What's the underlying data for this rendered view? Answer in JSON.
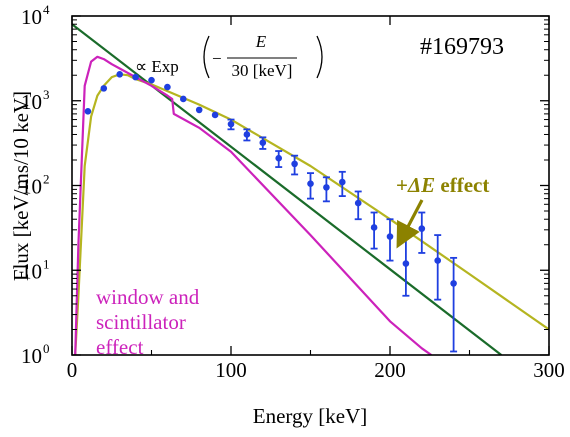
{
  "chart_data": {
    "type": "scatter",
    "xlabel": "Energy [keV]",
    "ylabel": "Flux [keV/ms/10 keV]",
    "xlim": [
      0,
      300
    ],
    "ylim": [
      1,
      10000
    ],
    "yscale": "log",
    "xticks": [
      0,
      100,
      200,
      300
    ],
    "yticks": [
      {
        "base": "10",
        "exp": "0",
        "value": 1
      },
      {
        "base": "10",
        "exp": "1",
        "value": 10
      },
      {
        "base": "10",
        "exp": "2",
        "value": 100
      },
      {
        "base": "10",
        "exp": "3",
        "value": 1000
      },
      {
        "base": "10",
        "exp": "4",
        "value": 10000
      }
    ],
    "shot_label": "#169793",
    "formula": {
      "prefix": "∝ Exp",
      "sign": "−",
      "numerator": "E",
      "denominator": "30 [keV]"
    },
    "series": [
      {
        "color": "#1f3fe0",
        "style": "points-errorbars",
        "x": [
          10,
          20,
          30,
          40,
          50,
          60,
          70,
          80,
          90,
          100,
          110,
          120,
          130,
          140,
          150,
          160,
          170,
          180,
          190,
          200,
          210,
          220,
          230,
          240
        ],
        "y": [
          750,
          1400,
          2050,
          1900,
          1750,
          1450,
          1050,
          780,
          680,
          530,
          400,
          320,
          210,
          180,
          105,
          95,
          110,
          62,
          32,
          25,
          12,
          31,
          13,
          7
        ],
        "y_low": [
          null,
          null,
          null,
          null,
          null,
          null,
          null,
          null,
          null,
          460,
          340,
          270,
          165,
          135,
          70,
          65,
          75,
          40,
          18,
          13,
          5,
          16,
          4.5,
          1.1
        ],
        "y_high": [
          null,
          null,
          null,
          null,
          null,
          null,
          null,
          null,
          null,
          600,
          460,
          370,
          255,
          225,
          140,
          125,
          145,
          85,
          48,
          40,
          24,
          48,
          26,
          14
        ]
      },
      {
        "color": "#1a6b2a",
        "style": "line",
        "x": [
          0,
          270
        ],
        "y": [
          8000,
          1.0
        ]
      },
      {
        "color": "#b5b520",
        "style": "line",
        "x": [
          2,
          4,
          8,
          12,
          16,
          20,
          25,
          30,
          35,
          40,
          50,
          60,
          80,
          100,
          150,
          200,
          250,
          300
        ],
        "y": [
          1.0,
          5,
          170,
          650,
          1150,
          1500,
          1900,
          2050,
          2000,
          1800,
          1560,
          1300,
          900,
          600,
          170,
          40,
          9,
          2
        ]
      },
      {
        "color": "#cc22bb",
        "style": "line",
        "x": [
          2,
          4,
          8,
          12,
          16,
          20,
          25,
          30,
          40,
          50,
          60,
          63,
          64,
          80,
          100,
          150,
          200,
          220,
          226
        ],
        "y": [
          1.0,
          20,
          1500,
          2900,
          3300,
          3100,
          2700,
          2400,
          1900,
          1500,
          1150,
          1050,
          700,
          480,
          250,
          26,
          2.5,
          1.2,
          1.0
        ]
      }
    ],
    "annotations": {
      "window_lines": [
        "window and",
        "scintillator",
        "effect"
      ],
      "delta_prefix": "+",
      "delta_symbol": "ΔE",
      "delta_suffix": " effect"
    }
  }
}
